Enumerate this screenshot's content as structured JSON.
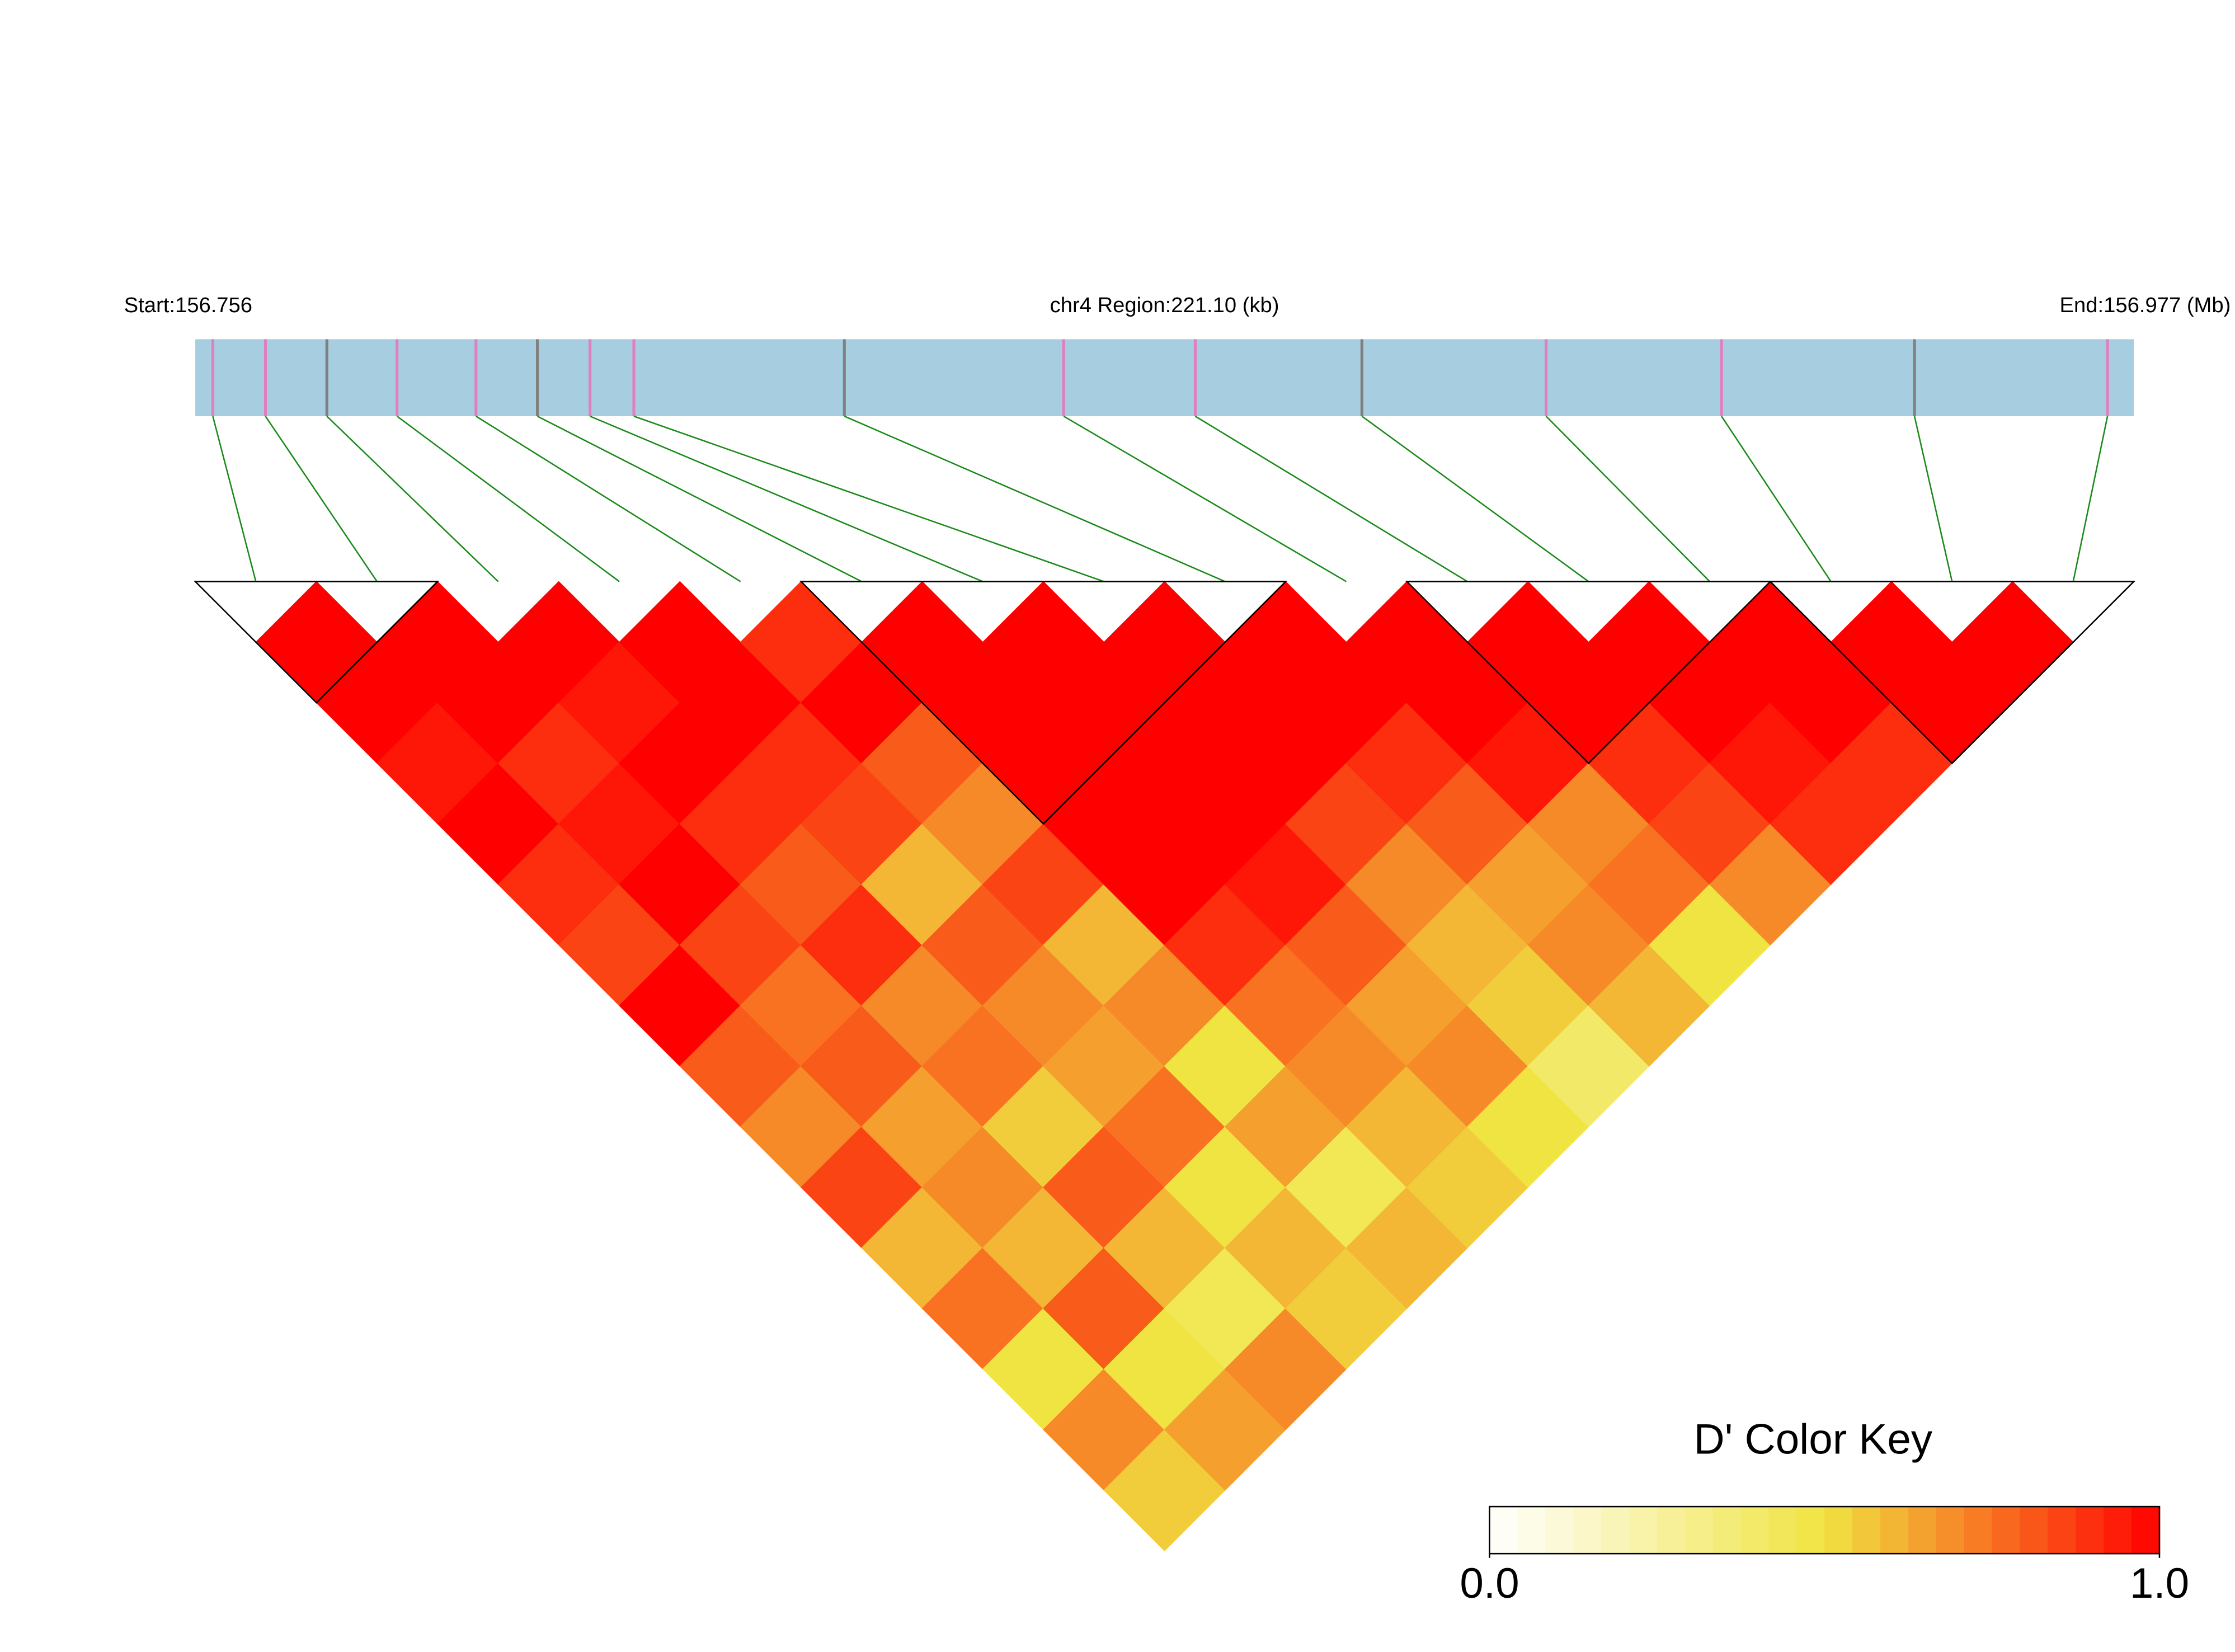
{
  "chart_data": {
    "type": "ld_heatmap",
    "start_label": "Start:156.756",
    "region_label": "chr4 Region:221.10 (kb)",
    "end_label": "End:156.977 (Mb)",
    "key_title": "D' Color Key",
    "xlim": [
      156.756,
      156.977
    ],
    "snp_positions": [
      156.758,
      156.764,
      156.771,
      156.779,
      156.788,
      156.795,
      156.801,
      156.806,
      156.83,
      156.855,
      156.87,
      156.889,
      156.91,
      156.93,
      156.952,
      156.974
    ],
    "dprime": [
      [
        1,
        1,
        0.95,
        1,
        0.9,
        0.85,
        1,
        0.8,
        0.7,
        0.85,
        0.6,
        0.75,
        0.5,
        0.7,
        0.55
      ],
      [
        1,
        1,
        0.9,
        0.95,
        1,
        0.85,
        0.75,
        0.8,
        0.65,
        0.7,
        0.6,
        0.8,
        0.5,
        0.65
      ],
      [
        1,
        0.95,
        1,
        0.9,
        0.8,
        0.9,
        0.7,
        0.75,
        0.55,
        0.8,
        0.6,
        0.45,
        0.7
      ],
      [
        1,
        1,
        0.9,
        0.85,
        0.6,
        0.8,
        0.7,
        0.65,
        0.75,
        0.5,
        0.6,
        0.55
      ],
      [
        0.9,
        1,
        0.8,
        0.7,
        0.85,
        0.6,
        0.7,
        0.5,
        0.65,
        0.45,
        0.6
      ],
      [
        1,
        1,
        1,
        1,
        1,
        0.9,
        0.75,
        0.7,
        0.6,
        0.55
      ],
      [
        1,
        1,
        1,
        1,
        0.95,
        0.8,
        0.65,
        0.7,
        0.5
      ],
      [
        1,
        1,
        1,
        0.85,
        0.7,
        0.6,
        0.55,
        0.4
      ],
      [
        1,
        1,
        0.9,
        0.8,
        0.65,
        0.7,
        0.6
      ],
      [
        1,
        1,
        0.95,
        0.7,
        0.75,
        0.5
      ],
      [
        1,
        1,
        0.9,
        0.85,
        0.7
      ],
      [
        1,
        1,
        0.95,
        0.9
      ],
      [
        1,
        1,
        0.9
      ],
      [
        1,
        1
      ],
      [
        1
      ]
    ],
    "blocks": [
      [
        0,
        1
      ],
      [
        5,
        8
      ],
      [
        10,
        12
      ],
      [
        13,
        15
      ]
    ],
    "clim": [
      0,
      1
    ],
    "cticks": [
      {
        "value": 0,
        "label": "0.0"
      },
      {
        "value": 1,
        "label": "1.0"
      }
    ],
    "colors": [
      "#ffffff",
      "#f0e442",
      "#ff0000"
    ]
  }
}
